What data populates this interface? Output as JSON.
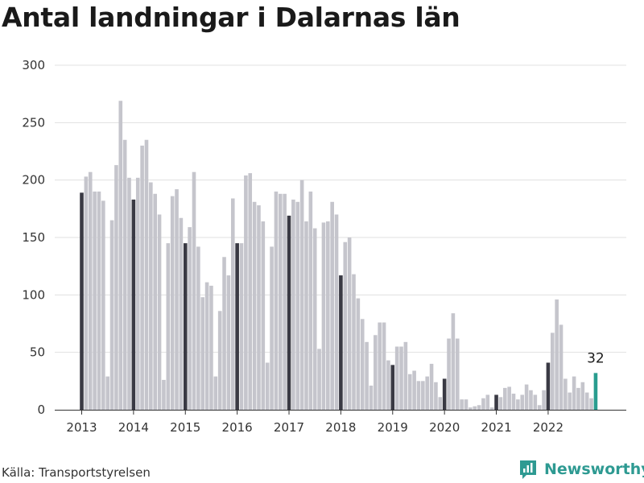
{
  "title": "Antal landningar i Dalarnas län",
  "source": "Källa: Transportstyrelsen",
  "brand": {
    "name": "Newsworthy",
    "icon": "newsworthy-logo-icon"
  },
  "colors": {
    "bar": "#c5c5cc",
    "january_bar": "#3a3a44",
    "latest_bar": "#2a9d8f",
    "grid": "#e0e0e0",
    "brand": "#2e9a92"
  },
  "chart_data": {
    "type": "bar",
    "ylim": [
      0,
      300
    ],
    "yticks": [
      0,
      50,
      100,
      150,
      200,
      250,
      300
    ],
    "xticks": [
      "2013",
      "2014",
      "2015",
      "2016",
      "2017",
      "2018",
      "2019",
      "2020",
      "2021",
      "2022"
    ],
    "xlabel": "",
    "ylabel": "",
    "grid": true,
    "highlight": "january",
    "annotation": {
      "label": "32",
      "index": 119
    },
    "start": "2013-01",
    "values": [
      189,
      203,
      207,
      190,
      190,
      182,
      29,
      165,
      213,
      269,
      235,
      202,
      183,
      202,
      230,
      235,
      198,
      188,
      170,
      26,
      145,
      186,
      192,
      167,
      145,
      159,
      207,
      142,
      98,
      111,
      108,
      29,
      86,
      133,
      117,
      184,
      145,
      145,
      204,
      206,
      181,
      178,
      164,
      41,
      142,
      190,
      188,
      188,
      169,
      183,
      181,
      200,
      164,
      190,
      158,
      53,
      163,
      164,
      181,
      170,
      117,
      146,
      150,
      118,
      97,
      79,
      59,
      21,
      65,
      76,
      76,
      43,
      39,
      55,
      55,
      59,
      31,
      34,
      25,
      25,
      29,
      40,
      24,
      11,
      27,
      62,
      84,
      62,
      9,
      9,
      2,
      3,
      4,
      10,
      13,
      2,
      13,
      11,
      19,
      20,
      14,
      9,
      13,
      22,
      17,
      13,
      4,
      17,
      41,
      67,
      96,
      74,
      27,
      15,
      29,
      19,
      24,
      15,
      10,
      32
    ]
  }
}
